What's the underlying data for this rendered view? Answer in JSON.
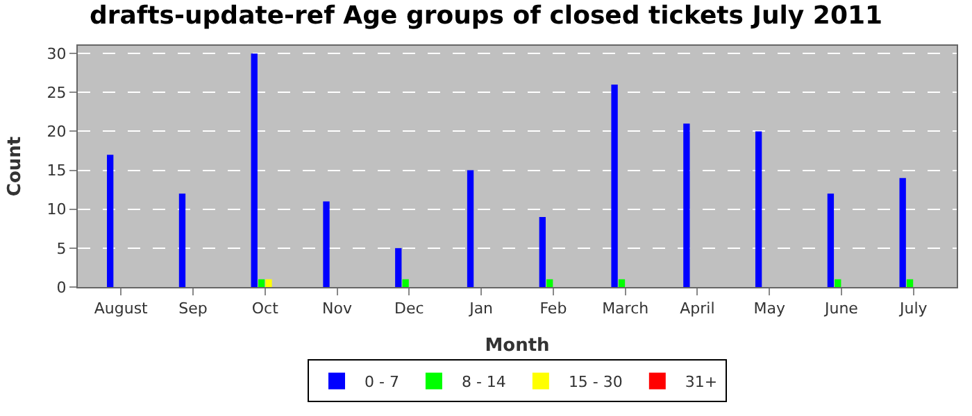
{
  "chart_data": {
    "type": "bar",
    "title": "drafts-update-ref Age groups of closed tickets July 2011",
    "xlabel": "Month",
    "ylabel": "Count",
    "categories": [
      "August",
      "Sep",
      "Oct",
      "Nov",
      "Dec",
      "Jan",
      "Feb",
      "March",
      "April",
      "May",
      "June",
      "July"
    ],
    "series": [
      {
        "name": "0 - 7",
        "color": "#0000ff",
        "values": [
          17,
          12,
          30,
          11,
          5,
          15,
          9,
          26,
          21,
          20,
          12,
          14
        ]
      },
      {
        "name": "8 - 14",
        "color": "#00ff00",
        "values": [
          0,
          0,
          1,
          0,
          1,
          0,
          1,
          1,
          0,
          0,
          1,
          1
        ]
      },
      {
        "name": "15 - 30",
        "color": "#ffff00",
        "values": [
          0,
          0,
          1,
          0,
          0,
          0,
          0,
          0,
          0,
          0,
          0,
          0
        ]
      },
      {
        "name": "31+",
        "color": "#ff0000",
        "values": [
          0,
          0,
          0,
          0,
          0,
          0,
          0,
          0,
          0,
          0,
          0,
          0
        ]
      }
    ],
    "ylim": [
      0,
      31
    ],
    "yticks": [
      0,
      5,
      10,
      15,
      20,
      25,
      30
    ],
    "grid": "y",
    "legend": "bottom"
  }
}
